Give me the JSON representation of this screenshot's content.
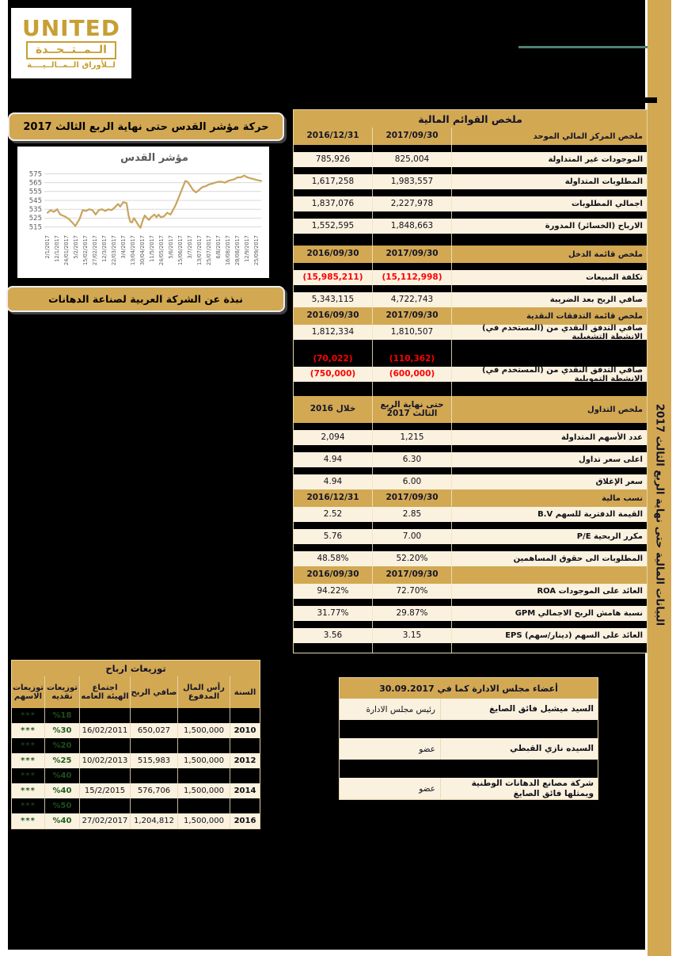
{
  "page": {
    "sidebar_vertical_text": "البيانات المالية حتى نهاية الربع الثالث 2017"
  },
  "logo": {
    "line1": "UNITED",
    "line2": "الــمــتــحــدة",
    "line3": "لــلأوراق الــمــالــيــــة"
  },
  "banners": {
    "chart_banner": "حركة مؤشر القدس حتى نهاية الربع الثالث 2017",
    "about_banner": "نبذة عن الشركة العربية لصناعة الدهانات"
  },
  "colors": {
    "gold": "#d2a852",
    "cream": "#fbf1df",
    "red": "#ff0000",
    "green": "#1e5e1e",
    "teal_line": "#4e7f74",
    "chart_line": "#c9a45c",
    "navy_text": "#15152a",
    "logo_gold": "#c79f33"
  },
  "chart_data": {
    "type": "line",
    "title": "مؤشر القدس",
    "legend_position": "none",
    "grid": true,
    "ylim": [
      511,
      579
    ],
    "y_ticks": [
      515,
      525,
      535,
      545,
      555,
      565,
      575
    ],
    "x_labels": [
      "2/1/2017",
      "12/1/2017",
      "24/01/2017",
      "5/2/2017",
      "15/02/2017",
      "27/02/2017",
      "12/3/2017",
      "22/03/2017",
      "3/4/2017",
      "13/04/2017",
      "30/04/2017",
      "11/5/2017",
      "24/05/2017",
      "5/6/2017",
      "15/06/2017",
      "3/7/2017",
      "13/07/2017",
      "25/07/2017",
      "6/8/2017",
      "16/08/2017",
      "28/08/2017",
      "12/9/2017",
      "25/09/2017"
    ],
    "series": [
      {
        "name": "مؤشر القدس",
        "points": [
          [
            0,
            531
          ],
          [
            1.5,
            534
          ],
          [
            3,
            532
          ],
          [
            4.5,
            535
          ],
          [
            6,
            529
          ],
          [
            8,
            527
          ],
          [
            10,
            524
          ],
          [
            12,
            519
          ],
          [
            13,
            516
          ],
          [
            14,
            520
          ],
          [
            15,
            524
          ],
          [
            16.5,
            534
          ],
          [
            18,
            533
          ],
          [
            19.5,
            535
          ],
          [
            21,
            534
          ],
          [
            22.5,
            529
          ],
          [
            24,
            534
          ],
          [
            25.5,
            535
          ],
          [
            27,
            533
          ],
          [
            28.5,
            535
          ],
          [
            30,
            534
          ],
          [
            31.5,
            537
          ],
          [
            33,
            541
          ],
          [
            34,
            538
          ],
          [
            35.5,
            543
          ],
          [
            37,
            542
          ],
          [
            38,
            527
          ],
          [
            38.7,
            521
          ],
          [
            39.5,
            520
          ],
          [
            40.5,
            525
          ],
          [
            41.5,
            521
          ],
          [
            42.5,
            517
          ],
          [
            43.5,
            514
          ],
          [
            44.5,
            522
          ],
          [
            45.5,
            528
          ],
          [
            46.5,
            525
          ],
          [
            47.5,
            523
          ],
          [
            48.5,
            526
          ],
          [
            50,
            529
          ],
          [
            51,
            526
          ],
          [
            52,
            529
          ],
          [
            53,
            526
          ],
          [
            54.5,
            527
          ],
          [
            56,
            531
          ],
          [
            57.5,
            529
          ],
          [
            58.5,
            533
          ],
          [
            60,
            540
          ],
          [
            61.5,
            549
          ],
          [
            63,
            558
          ],
          [
            64.5,
            567
          ],
          [
            65.5,
            566
          ],
          [
            67,
            561
          ],
          [
            68,
            557
          ],
          [
            69.5,
            554
          ],
          [
            71,
            557
          ],
          [
            72.5,
            560
          ],
          [
            74,
            561
          ],
          [
            75.5,
            563
          ],
          [
            77,
            564
          ],
          [
            78.5,
            565
          ],
          [
            80,
            566
          ],
          [
            81.5,
            566
          ],
          [
            83,
            565
          ],
          [
            84.5,
            567
          ],
          [
            86,
            568
          ],
          [
            87.5,
            569
          ],
          [
            89,
            571
          ],
          [
            90.5,
            571
          ],
          [
            92,
            573
          ],
          [
            93.5,
            571
          ],
          [
            95,
            570
          ],
          [
            96.5,
            569
          ],
          [
            98,
            568
          ],
          [
            100,
            567
          ]
        ]
      }
    ]
  },
  "financial_table": {
    "title": "ملخص القوائم المالية",
    "rows": [
      {
        "t": "header",
        "label": "ملخص المركز المالي الموحد",
        "c1": "2017/09/30",
        "c2": "2016/12/31"
      },
      {
        "t": "spacer"
      },
      {
        "t": "data",
        "label": "الموجودات غير المتداولة",
        "c1": "825,004",
        "c2": "785,926"
      },
      {
        "t": "spacer"
      },
      {
        "t": "data",
        "label": "المطلوبات المتداولة",
        "c1": "1,983,557",
        "c2": "1,617,258"
      },
      {
        "t": "spacer"
      },
      {
        "t": "data",
        "label": "اجمالي المطلوبات",
        "c1": "2,227,978",
        "c2": "1,837,076"
      },
      {
        "t": "spacer"
      },
      {
        "t": "data",
        "label": "الارباح (الخسائر) المدورة",
        "c1": "1,848,663",
        "c2": "1,552,595"
      },
      {
        "t": "spacer",
        "h": 15
      },
      {
        "t": "header",
        "label": "ملخص قائمة الدخل",
        "c1": "2017/09/30",
        "c2": "2016/09/30"
      },
      {
        "t": "spacer"
      },
      {
        "t": "data",
        "label": "تكلفة المبيعات",
        "c1": "(15,112,998)",
        "c2": "(15,985,211)",
        "red": true
      },
      {
        "t": "spacer"
      },
      {
        "t": "data",
        "label": "صافي الربح بعد الضريبة",
        "c1": "4,722,743",
        "c2": "5,343,115"
      },
      {
        "t": "header",
        "label": "ملخص قائمة التدفقات النقدية",
        "c1": "2017/09/30",
        "c2": "2016/09/30"
      },
      {
        "t": "data",
        "label": "صافي التدفق النقدي من (المستخدم في) الانشطة التشغيلية",
        "c1": "1,810,507",
        "c2": "1,812,334"
      },
      {
        "t": "spacer",
        "h": 15
      },
      {
        "t": "blackdata",
        "c1": "(110,362)",
        "c2": "(70,022)"
      },
      {
        "t": "data",
        "label": "صافي التدفق النقدي من (المستخدم في) الانشطة التمويلية",
        "c1": "(600,000)",
        "c2": "(750,000)",
        "red": true
      },
      {
        "t": "spacer",
        "h": 18
      },
      {
        "t": "header",
        "label": "ملخص التداول",
        "c1": "حتى نهاية الربع الثالث 2017",
        "c2": "خلال 2016",
        "h": 34
      },
      {
        "t": "spacer"
      },
      {
        "t": "data",
        "label": "عدد الأسهم المتداولة",
        "c1": "1,215",
        "c2": "2,094"
      },
      {
        "t": "spacer"
      },
      {
        "t": "data",
        "label": "اعلى سعر تداول",
        "c1": "6.30",
        "c2": "4.94"
      },
      {
        "t": "spacer"
      },
      {
        "t": "data",
        "label": "سعر الإغلاق",
        "c1": "6.00",
        "c2": "4.94"
      },
      {
        "t": "header",
        "label": "نسب مالية",
        "c1": "2017/09/30",
        "c2": "2016/12/31"
      },
      {
        "t": "data",
        "label": "القيمة الدفترية للسهم B.V",
        "c1": "2.85",
        "c2": "2.52"
      },
      {
        "t": "spacer"
      },
      {
        "t": "data",
        "label": "مكرر الربحية P/E",
        "c1": "7.00",
        "c2": "5.76"
      },
      {
        "t": "spacer"
      },
      {
        "t": "data",
        "label": "المطلوبات الى حقوق المساهمين",
        "c1": "52.20%",
        "c2": "48.58%"
      },
      {
        "t": "header",
        "label": "",
        "c1": "2017/09/30",
        "c2": "2016/09/30"
      },
      {
        "t": "data",
        "label": "العائد على الموجودات ROA",
        "c1": "72.70%",
        "c2": "94.22%"
      },
      {
        "t": "spacer"
      },
      {
        "t": "data",
        "label": "نسبة هامش الربح الاجمالي GPM",
        "c1": "29.87%",
        "c2": "31.77%"
      },
      {
        "t": "spacer"
      },
      {
        "t": "data",
        "label": "العائد على السهم (دينار/سهم)  EPS",
        "c1": "3.15",
        "c2": "3.56"
      },
      {
        "t": "spacer",
        "h": 12
      }
    ]
  },
  "dividends_table": {
    "title": "توزيعات ارباح",
    "headers": {
      "year": "السنة",
      "capital": "رأس المال المدفوع",
      "profit": "صافي الربح",
      "meeting": "اجتماع الهيئة العامه",
      "cash": "توزيعات نقديه",
      "stock": "توزيعات الاسهم"
    },
    "rows": [
      {
        "hidden": true,
        "cash": "%18",
        "stock": "***"
      },
      {
        "year": "2010",
        "capital": "1,500,000",
        "profit": "650,027",
        "meeting": "16/02/2011",
        "cash": "%30",
        "stock": "***"
      },
      {
        "hidden": true,
        "cash": "%20",
        "stock": "***"
      },
      {
        "year": "2012",
        "capital": "1,500,000",
        "profit": "515,983",
        "meeting": "10/02/2013",
        "cash": "%25",
        "stock": "***"
      },
      {
        "hidden": true,
        "cash": "%40",
        "stock": "***"
      },
      {
        "year": "2014",
        "capital": "1,500,000",
        "profit": "576,706",
        "meeting": "15/2/2015",
        "cash": "%40",
        "stock": "***"
      },
      {
        "hidden": true,
        "cash": "%50",
        "stock": "***"
      },
      {
        "year": "2016",
        "capital": "1,500,000",
        "profit": "1,204,812",
        "meeting": "27/02/2017",
        "cash": "%40",
        "stock": "***"
      }
    ]
  },
  "board_table": {
    "title": "أعضاء مجلس الادارة كما في 30.09.2017",
    "rows": [
      {
        "name": "السيد ميشيل فائق الصايغ",
        "role": "رئيس مجلس الادارة"
      },
      {
        "hidden": true
      },
      {
        "name": "السيده نازي القبطي",
        "role": "عضو"
      },
      {
        "hidden": true
      },
      {
        "name": "شركة مصانع الدهانات الوطنية ويمثلها فائق الصايغ",
        "role": "عضو"
      }
    ]
  }
}
